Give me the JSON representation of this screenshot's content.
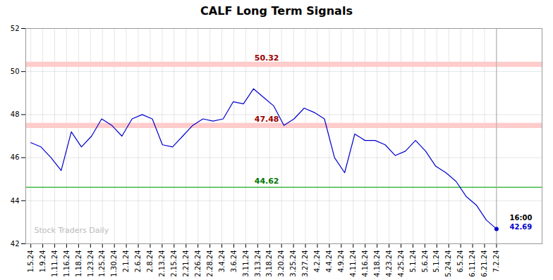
{
  "chart_data": {
    "type": "line",
    "title": "CALF Long Term Signals",
    "watermark": "Stock Traders Daily",
    "values": [
      46.7,
      46.5,
      46.0,
      45.4,
      47.2,
      46.5,
      47.0,
      47.8,
      47.5,
      47.0,
      47.8,
      48.0,
      47.8,
      46.6,
      46.5,
      47.0,
      47.5,
      47.8,
      47.7,
      47.8,
      48.6,
      48.5,
      49.2,
      48.8,
      48.4,
      47.5,
      47.8,
      48.3,
      48.1,
      47.8,
      46.0,
      45.3,
      47.1,
      46.8,
      46.8,
      46.6,
      46.1,
      46.3,
      46.8,
      46.3,
      45.6,
      45.3,
      44.9,
      44.2,
      43.8,
      43.1,
      42.69
    ],
    "color": "#0000cc",
    "xtick_labels": [
      "1.5.24",
      "1.9.24",
      "1.11.24",
      "1.16.24",
      "1.18.24",
      "1.23.24",
      "1.25.24",
      "1.30.24",
      "2.1.24",
      "2.6.24",
      "2.8.24",
      "2.13.24",
      "2.15.24",
      "2.21.24",
      "2.26.24",
      "2.28.24",
      "3.4.24",
      "3.6.24",
      "3.11.24",
      "3.13.24",
      "3.18.24",
      "3.20.24",
      "3.25.24",
      "3.27.24",
      "4.2.24",
      "4.4.24",
      "4.9.24",
      "4.11.24",
      "4.16.24",
      "4.18.24",
      "4.23.24",
      "4.25.24",
      "5.1.24",
      "5.6.24",
      "5.1.24",
      "5.24.24",
      "6.5.24",
      "6.11.24",
      "6.21.24",
      "7.2.24"
    ],
    "ylim": [
      42,
      52
    ],
    "yticks": [
      42,
      44,
      46,
      48,
      50,
      52
    ],
    "grid": true,
    "hlines": [
      {
        "value": 50.32,
        "band_width": 0.12,
        "color": "#ffcccc",
        "text_color": "#990000"
      },
      {
        "value": 47.48,
        "band_width": 0.12,
        "color": "#ffcccc",
        "text_color": "#990000"
      },
      {
        "value": 44.62,
        "color": "#44bb44",
        "text_color": "#007700"
      }
    ],
    "last_price": 42.69,
    "last_time": "16:00"
  }
}
